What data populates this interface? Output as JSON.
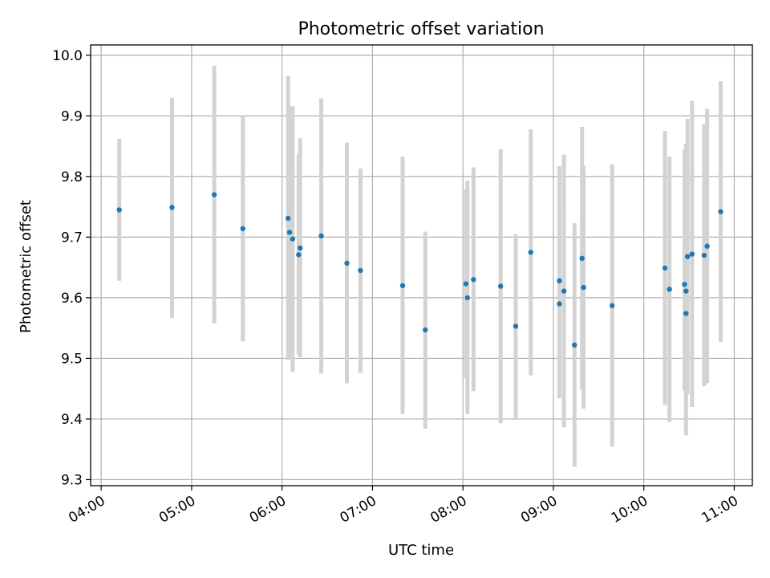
{
  "chart_data": {
    "type": "scatter",
    "title": "Photometric offset variation",
    "xlabel": "UTC time",
    "ylabel": "Photometric offset",
    "xlim": [
      "03:53",
      "11:12"
    ],
    "ylim": [
      9.29,
      10.017
    ],
    "xticks": [
      "04:00",
      "05:00",
      "06:00",
      "07:00",
      "08:00",
      "09:00",
      "10:00",
      "11:00"
    ],
    "yticks": [
      9.3,
      9.4,
      9.5,
      9.6,
      9.7,
      9.8,
      9.9,
      10.0
    ],
    "ytick_labels": [
      "9.3",
      "9.4",
      "9.5",
      "9.6",
      "9.7",
      "9.8",
      "9.9",
      "10.0"
    ],
    "grid": true,
    "colors": {
      "points": "#1f77b4",
      "error_bars": "#d3d3d3",
      "grid": "#b0b0b0"
    },
    "series": [
      {
        "points": [
          {
            "x": "04:12",
            "y": 9.745,
            "lo": 9.628,
            "hi": 9.862
          },
          {
            "x": "04:47",
            "y": 9.749,
            "lo": 9.567,
            "hi": 9.93
          },
          {
            "x": "05:15",
            "y": 9.77,
            "lo": 9.558,
            "hi": 9.983
          },
          {
            "x": "05:34",
            "y": 9.714,
            "lo": 9.528,
            "hi": 9.9
          },
          {
            "x": "06:04",
            "y": 9.731,
            "lo": 9.497,
            "hi": 9.966
          },
          {
            "x": "06:05",
            "y": 9.708,
            "lo": 9.5,
            "hi": 9.914
          },
          {
            "x": "06:07",
            "y": 9.697,
            "lo": 9.478,
            "hi": 9.916
          },
          {
            "x": "06:11",
            "y": 9.671,
            "lo": 9.506,
            "hi": 9.837
          },
          {
            "x": "06:12",
            "y": 9.682,
            "lo": 9.502,
            "hi": 9.863
          },
          {
            "x": "06:26",
            "y": 9.702,
            "lo": 9.475,
            "hi": 9.929
          },
          {
            "x": "06:43",
            "y": 9.657,
            "lo": 9.459,
            "hi": 9.856
          },
          {
            "x": "06:52",
            "y": 9.645,
            "lo": 9.476,
            "hi": 9.813
          },
          {
            "x": "07:20",
            "y": 9.62,
            "lo": 9.408,
            "hi": 9.833
          },
          {
            "x": "07:35",
            "y": 9.547,
            "lo": 9.384,
            "hi": 9.709
          },
          {
            "x": "08:02",
            "y": 9.623,
            "lo": 9.467,
            "hi": 9.779
          },
          {
            "x": "08:03",
            "y": 9.6,
            "lo": 9.408,
            "hi": 9.793
          },
          {
            "x": "08:07",
            "y": 9.63,
            "lo": 9.446,
            "hi": 9.815
          },
          {
            "x": "08:25",
            "y": 9.619,
            "lo": 9.393,
            "hi": 9.845
          },
          {
            "x": "08:35",
            "y": 9.553,
            "lo": 9.401,
            "hi": 9.705
          },
          {
            "x": "08:45",
            "y": 9.675,
            "lo": 9.472,
            "hi": 9.878
          },
          {
            "x": "09:04",
            "y": 9.59,
            "lo": 9.434,
            "hi": 9.746
          },
          {
            "x": "09:04",
            "y": 9.628,
            "lo": 9.439,
            "hi": 9.817
          },
          {
            "x": "09:07",
            "y": 9.611,
            "lo": 9.386,
            "hi": 9.836
          },
          {
            "x": "09:14",
            "y": 9.522,
            "lo": 9.321,
            "hi": 9.723
          },
          {
            "x": "09:19",
            "y": 9.665,
            "lo": 9.448,
            "hi": 9.882
          },
          {
            "x": "09:20",
            "y": 9.617,
            "lo": 9.417,
            "hi": 9.818
          },
          {
            "x": "09:39",
            "y": 9.587,
            "lo": 9.354,
            "hi": 9.82
          },
          {
            "x": "10:14",
            "y": 9.649,
            "lo": 9.423,
            "hi": 9.875
          },
          {
            "x": "10:17",
            "y": 9.614,
            "lo": 9.395,
            "hi": 9.833
          },
          {
            "x": "10:27",
            "y": 9.622,
            "lo": 9.447,
            "hi": 9.844
          },
          {
            "x": "10:28",
            "y": 9.611,
            "lo": 9.443,
            "hi": 9.854
          },
          {
            "x": "10:28",
            "y": 9.574,
            "lo": 9.373,
            "hi": 9.775
          },
          {
            "x": "10:29",
            "y": 9.668,
            "lo": 9.441,
            "hi": 9.895
          },
          {
            "x": "10:32",
            "y": 9.672,
            "lo": 9.42,
            "hi": 9.925
          },
          {
            "x": "10:40",
            "y": 9.67,
            "lo": 9.454,
            "hi": 9.886
          },
          {
            "x": "10:42",
            "y": 9.685,
            "lo": 9.459,
            "hi": 9.912
          },
          {
            "x": "10:51",
            "y": 9.742,
            "lo": 9.527,
            "hi": 9.957
          }
        ]
      }
    ]
  }
}
